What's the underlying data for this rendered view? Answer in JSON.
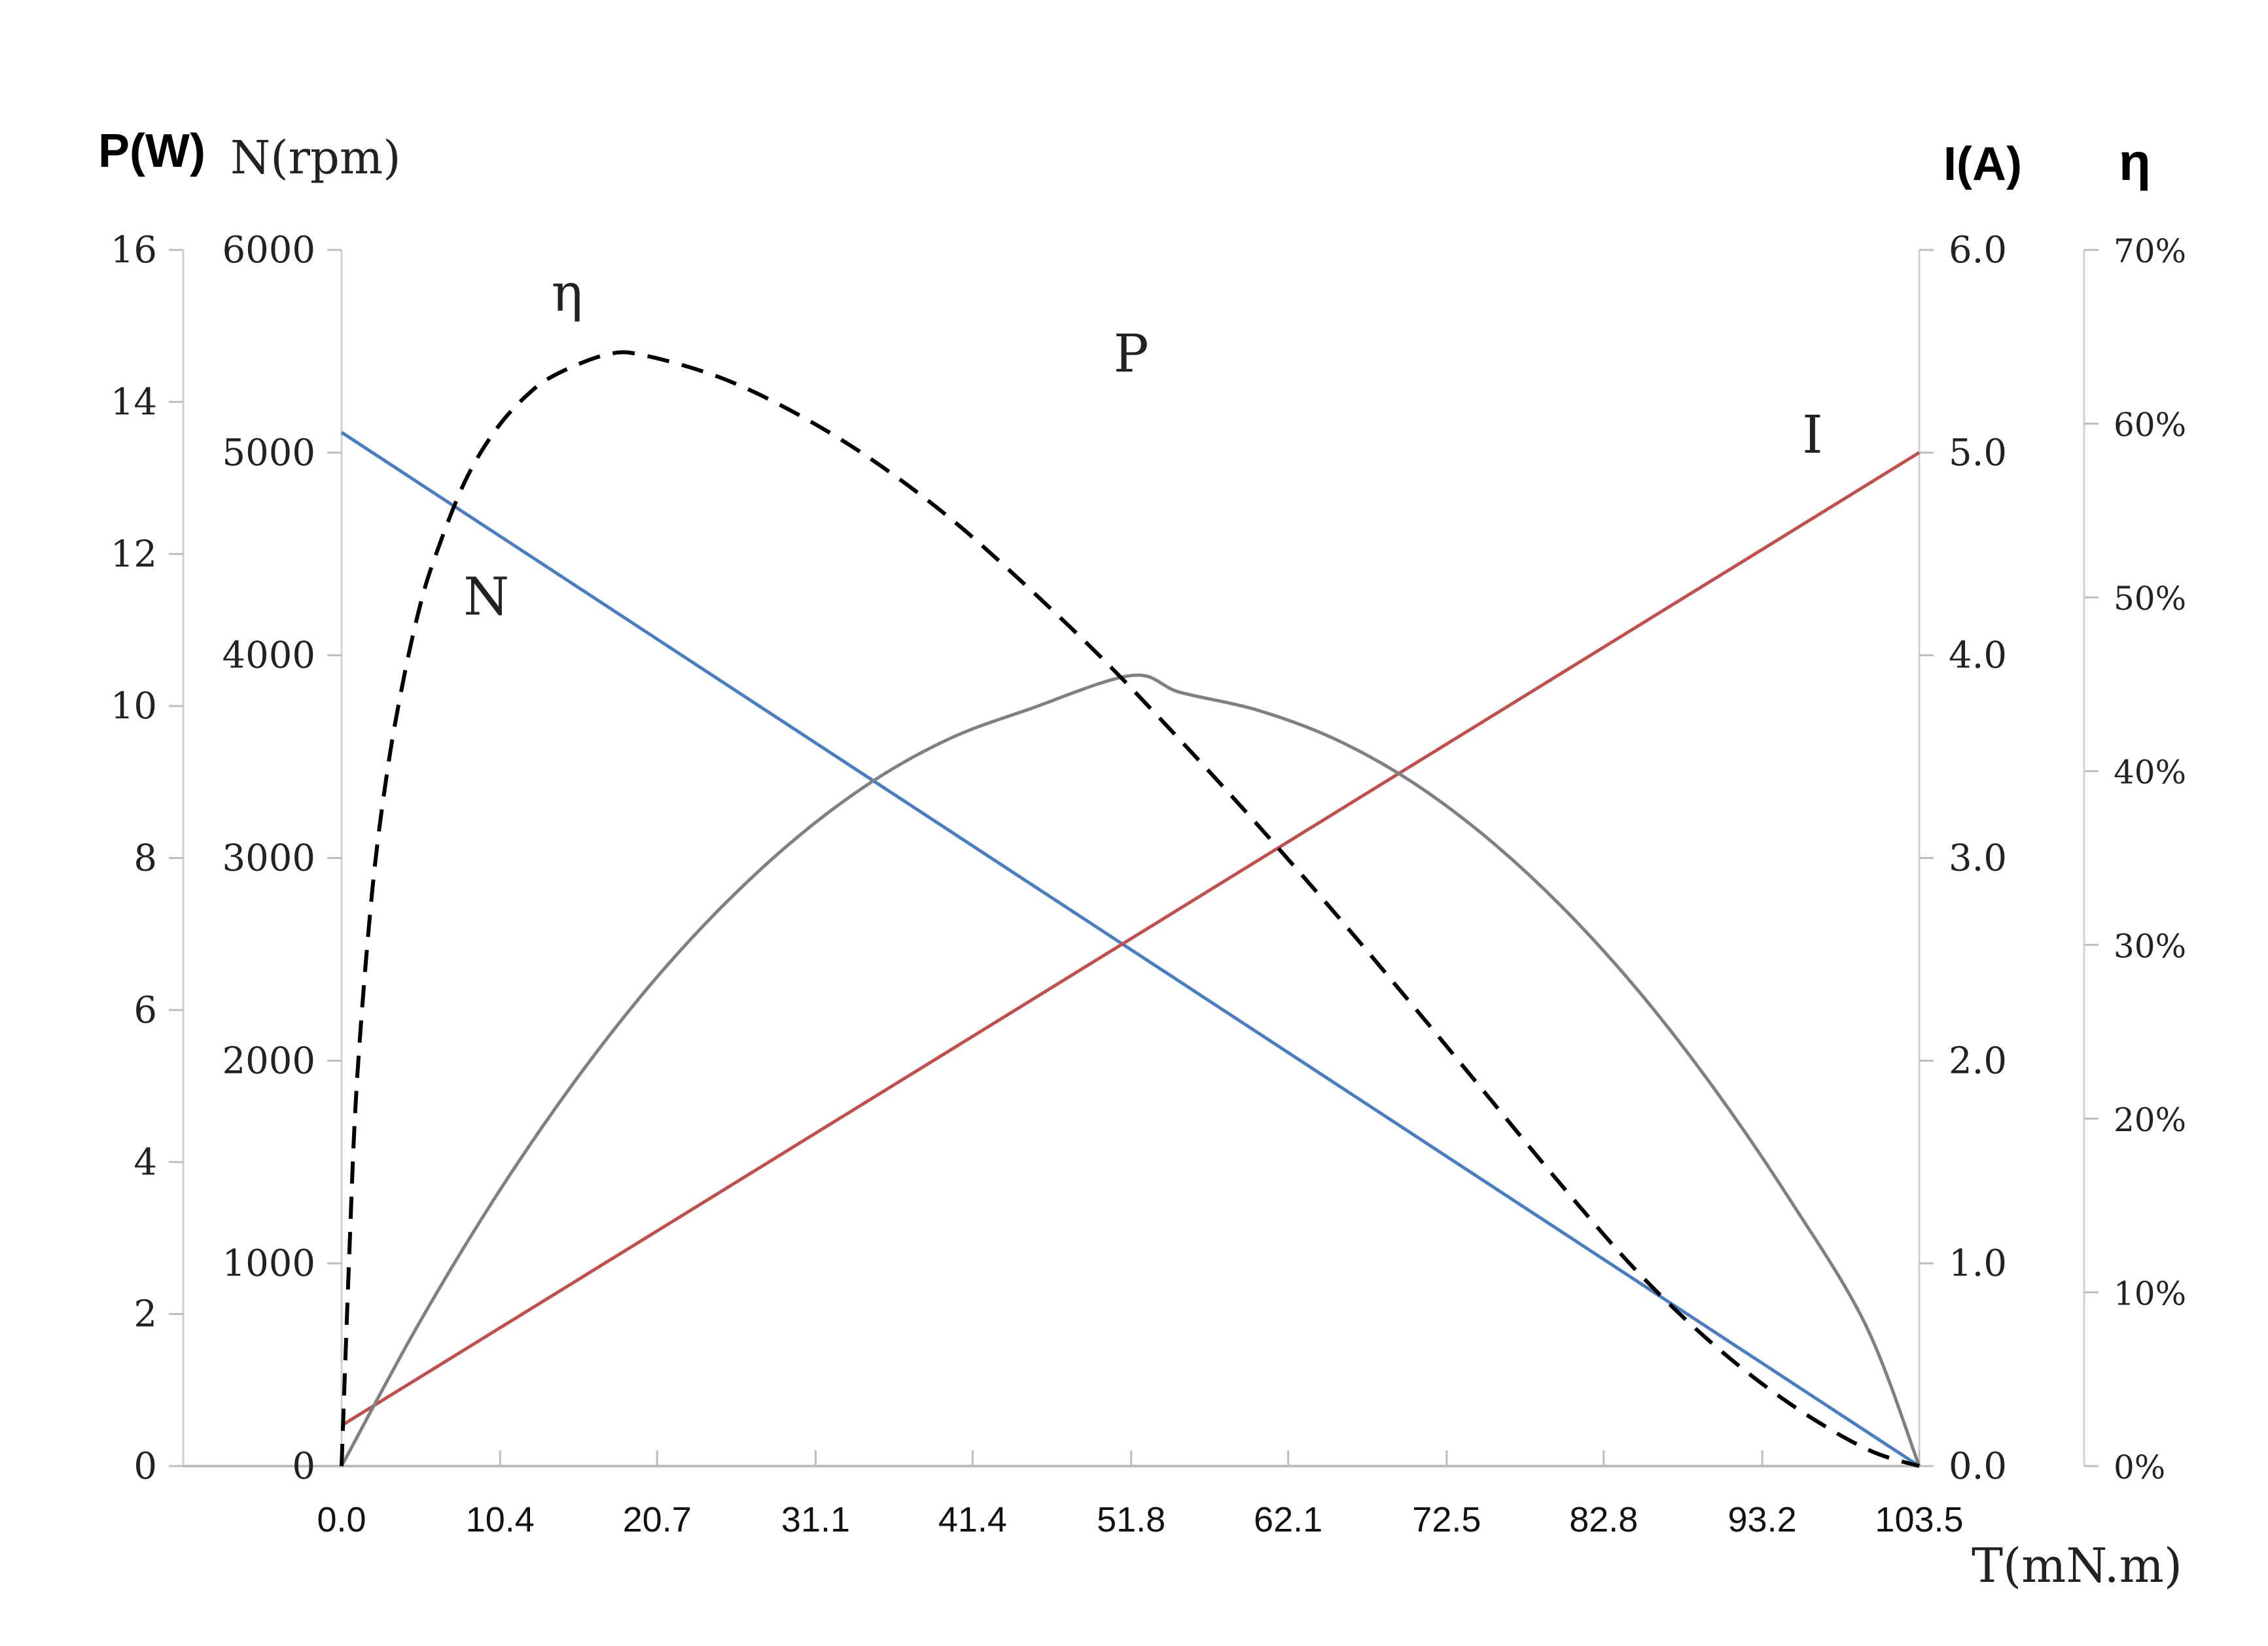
{
  "chart_data": {
    "type": "line",
    "x_axis": {
      "label": "T(mN.m)",
      "ticks": [
        0.0,
        10.4,
        20.7,
        31.1,
        41.4,
        51.8,
        62.1,
        72.5,
        82.8,
        93.2,
        103.5
      ],
      "tick_labels": [
        "0.0",
        "10.4",
        "20.7",
        "31.1",
        "41.4",
        "51.8",
        "62.1",
        "72.5",
        "82.8",
        "93.2",
        "103.5"
      ],
      "range": [
        0,
        103.5
      ]
    },
    "y_axes": [
      {
        "id": "P",
        "label": "P(W)",
        "side": "left-outer",
        "range": [
          0,
          16
        ],
        "tick_labels": [
          "0",
          "2",
          "4",
          "6",
          "8",
          "10",
          "12",
          "14",
          "16"
        ]
      },
      {
        "id": "N",
        "label": "N(rpm)",
        "side": "left-inner",
        "range": [
          0,
          6000
        ],
        "tick_labels": [
          "0",
          "1000",
          "2000",
          "3000",
          "4000",
          "5000",
          "6000"
        ]
      },
      {
        "id": "I",
        "label": "I(A)",
        "side": "right-inner",
        "range": [
          0,
          6
        ],
        "tick_labels": [
          "0.0",
          "1.0",
          "2.0",
          "3.0",
          "4.0",
          "5.0",
          "6.0"
        ]
      },
      {
        "id": "eta",
        "label": "η",
        "side": "right-outer",
        "range": [
          0,
          70
        ],
        "tick_labels": [
          "0%",
          "10%",
          "20%",
          "30%",
          "40%",
          "50%",
          "60%",
          "70%"
        ]
      }
    ],
    "series": [
      {
        "name": "N",
        "axis": "N",
        "color": "#4a7ec0",
        "style": "solid",
        "x": [
          0,
          103.5
        ],
        "y": [
          5100,
          0
        ],
        "label_at": [
          9.5,
          4200
        ]
      },
      {
        "name": "I",
        "axis": "I",
        "color": "#c0504d",
        "style": "solid",
        "x": [
          0,
          103.5
        ],
        "y": [
          0.2,
          5.0
        ],
        "label_at": [
          96.5,
          5.0
        ]
      },
      {
        "name": "P",
        "axis": "P",
        "color": "#808080",
        "style": "solid",
        "x": [
          0,
          5,
          10,
          15,
          20,
          25,
          30,
          35,
          40,
          45,
          51.8,
          55,
          60,
          65,
          70,
          75,
          80,
          85,
          90,
          95,
          100,
          103.5
        ],
        "y": [
          0,
          1.85,
          3.51,
          4.98,
          6.27,
          7.37,
          8.29,
          9.03,
          9.58,
          9.95,
          10.4,
          10.18,
          9.95,
          9.58,
          9.03,
          8.29,
          7.37,
          6.27,
          4.98,
          3.51,
          1.85,
          0
        ],
        "label_at": [
          51.8,
          14.4
        ]
      },
      {
        "name": "η",
        "axis": "eta",
        "color": "#000000",
        "style": "dashed",
        "x": [
          0,
          0.5,
          1,
          2,
          3,
          4,
          5,
          6,
          8,
          10,
          12,
          14,
          17.5,
          20,
          25,
          30,
          35,
          40,
          45,
          50,
          55,
          60,
          65,
          70,
          75,
          80,
          85,
          90,
          95,
          100,
          103.5
        ],
        "y": [
          0,
          12,
          22,
          33,
          40,
          45,
          49,
          52,
          56.5,
          59.5,
          61.5,
          62.8,
          64,
          63.9,
          62.6,
          60.5,
          57.8,
          54.5,
          50.6,
          46.4,
          41.8,
          37.0,
          32.0,
          26.8,
          21.5,
          16.2,
          11.2,
          7.0,
          3.6,
          1.0,
          0
        ],
        "label_at": [
          14.8,
          66.5
        ]
      }
    ],
    "grid": false,
    "legend": "inline-labels"
  }
}
